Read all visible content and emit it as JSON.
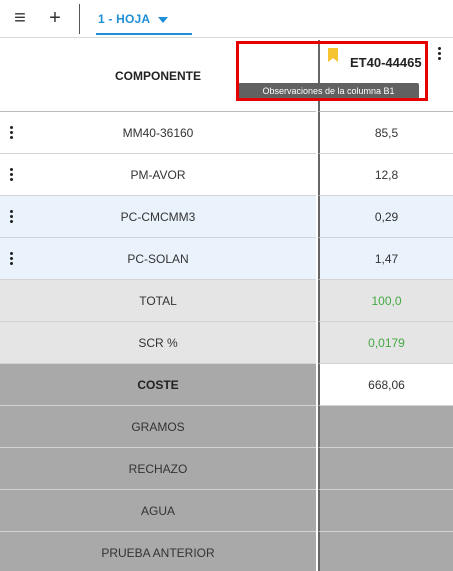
{
  "toolbar": {
    "menu_icon": "hamburger-icon",
    "add_icon": "plus-icon",
    "sheet_tab": "1 - HOJA"
  },
  "header": {
    "left_label": "COMPONENTE",
    "right_label": "ET40-44465",
    "tooltip": "Observaciones de la columna B1",
    "bookmark_color": "#f6c431"
  },
  "rows": [
    {
      "label": "MM40-36160",
      "value": "85,5"
    },
    {
      "label": "PM-AVOR",
      "value": "12,8"
    },
    {
      "label": "PC-CMCMM3",
      "value": "0,29"
    },
    {
      "label": "PC-SOLAN",
      "value": "1,47"
    }
  ],
  "summary": [
    {
      "label": "TOTAL",
      "value": "100,0"
    },
    {
      "label": "SCR %",
      "value": "0,0179"
    }
  ],
  "cost": {
    "label": "COSTE",
    "value": "668,06"
  },
  "extra": [
    "GRAMOS",
    "RECHAZO",
    "AGUA",
    "PRUEBA ANTERIOR"
  ],
  "colors": {
    "accent": "#1f8fd6",
    "highlight": "#e60000",
    "positive": "#43a843"
  }
}
